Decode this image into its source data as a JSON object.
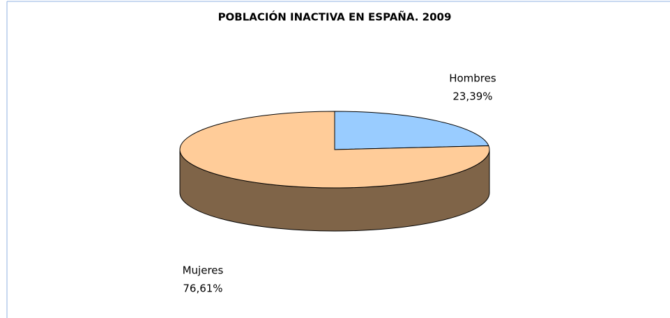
{
  "chart_data": {
    "type": "pie3d",
    "title": "POBLACIÓN INACTIVA EN ESPAÑA. 2009",
    "categories": [
      "Hombres",
      "Mujeres"
    ],
    "values": [
      23.39,
      76.61
    ],
    "value_labels": [
      "23,39%",
      "76,61%"
    ],
    "colors": [
      "#99ccff",
      "#ffcc99"
    ],
    "side_color": "#7f6448"
  }
}
